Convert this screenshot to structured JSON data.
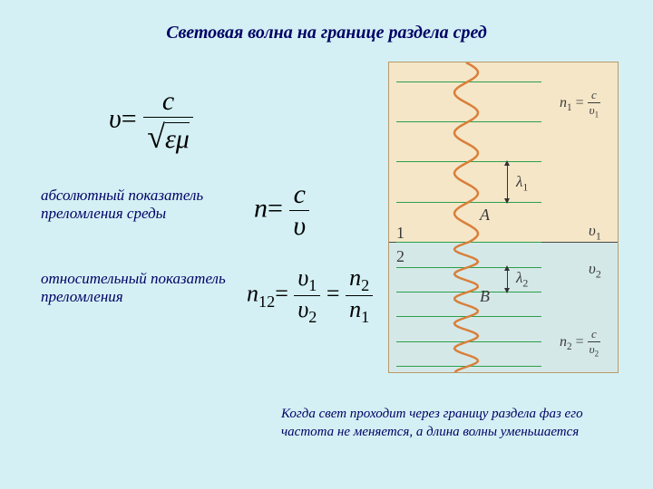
{
  "title": "Световая волна на границе раздела сред",
  "labels": {
    "absolute": "абсолютный показатель преломления среды",
    "relative": "относительный показатель преломления"
  },
  "bottom_note": "Когда свет проходит через границу раздела фаз его частота не меняется, а длина волны уменьшается",
  "formulas": {
    "f1": {
      "lhs": "υ",
      "num": "c",
      "den_sqrt": "εμ"
    },
    "f2": {
      "lhs": "n",
      "num": "c",
      "den": "υ"
    },
    "f3": {
      "lhs": "n",
      "lhs_sub": "12",
      "mid_num": "υ",
      "mid_num_sub": "1",
      "mid_den": "υ",
      "mid_den_sub": "2",
      "rhs_num": "n",
      "rhs_num_sub": "2",
      "rhs_den": "n",
      "rhs_den_sub": "1"
    }
  },
  "diagram": {
    "bg_top": "#f5e6c8",
    "bg_bottom": "#d5e8e8",
    "line_color": "#2aa04a",
    "wave_color": "#d97f3a",
    "wavefronts_top_pct": [
      6,
      19,
      32,
      45,
      58
    ],
    "wavefronts_bottom_pct": [
      66,
      74,
      82,
      90,
      98
    ],
    "lambda1": "λ",
    "lambda1_sub": "1",
    "lambda2": "λ",
    "lambda2_sub": "2",
    "A": "A",
    "B": "B",
    "region1": "1",
    "region2": "2",
    "v1": "υ",
    "v1_sub": "1",
    "v2": "υ",
    "v2_sub": "2",
    "n1_eq": {
      "lhs": "n",
      "lhs_sub": "1",
      "num": "c",
      "den": "υ",
      "den_sub": "1"
    },
    "n2_eq": {
      "lhs": "n",
      "lhs_sub": "2",
      "num": "c",
      "den": "υ",
      "den_sub": "2"
    }
  },
  "style": {
    "title_color": "#000066",
    "title_fontsize": 20,
    "bg_color": "#d4f0f4"
  }
}
